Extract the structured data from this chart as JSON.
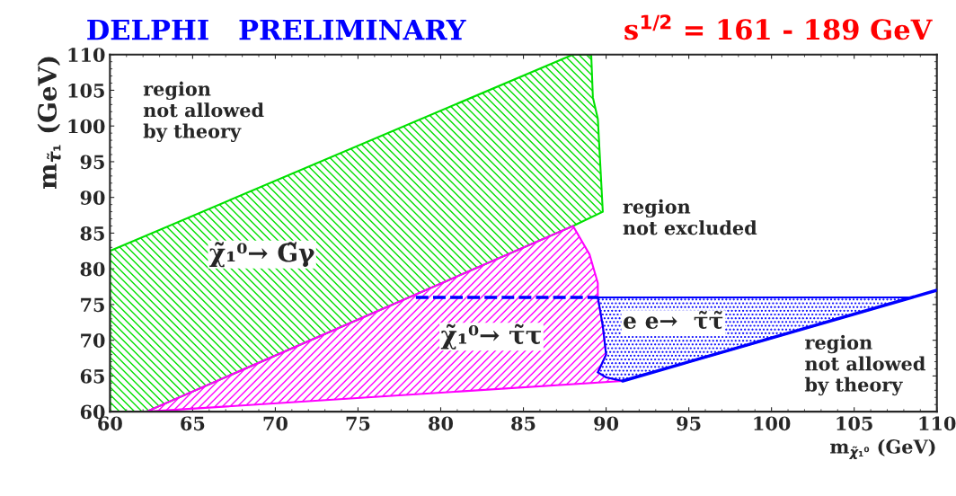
{
  "chart_data": {
    "type": "area",
    "title": "DELPHI   PRELIMINARY",
    "subtitle": "s$^{1/2}$ = 161 - 189 GeV",
    "xlabel": "m$_{χ̃₁⁰}$ (GeV)",
    "ylabel": "m$_{τ̃₁}$ (GeV)",
    "xlim": [
      60,
      110
    ],
    "ylim": [
      60,
      110
    ],
    "xticks": [
      60,
      65,
      70,
      75,
      80,
      85,
      90,
      95,
      100,
      105,
      110
    ],
    "yticks": [
      60,
      65,
      70,
      75,
      80,
      85,
      90,
      95,
      100,
      105,
      110
    ],
    "series": [
      {
        "color": "#00e000",
        "x": [
          60,
          88,
          89.1,
          89.2,
          89.5,
          89.8,
          88,
          62.2,
          60
        ],
        "values": [
          82.5,
          110,
          110,
          104,
          101,
          88,
          86,
          60,
          60
        ]
      },
      {
        "color": "#ff00ff",
        "x": [
          62.2,
          88,
          89,
          89.5,
          89.5,
          89.8,
          90,
          89.5,
          90,
          91,
          62.2
        ],
        "values": [
          60,
          86,
          82,
          78,
          76,
          72,
          68,
          65.5,
          64.8,
          64.3,
          60
        ]
      },
      {
        "color": "#0000ff",
        "x": [
          89.5,
          108.5,
          91,
          90,
          89.5,
          90,
          89.8,
          89.5
        ],
        "values": [
          76,
          76,
          64.3,
          64.8,
          65.5,
          68,
          72,
          76
        ]
      },
      {
        "type": "line",
        "color": "#0000ff",
        "line_style": "solid",
        "x": [
          91,
          110
        ],
        "values": [
          64.3,
          77
        ]
      },
      {
        "type": "line",
        "color": "#0000ff",
        "line_style": "dashed",
        "x": [
          78.5,
          84,
          89.5
        ],
        "values": [
          76,
          76,
          76
        ]
      }
    ],
    "annotations": [
      "region\nnot allowed\nby theory",
      "region\nnot excluded",
      "region\nnot allowed\nby theory",
      "χ̃₁⁰→ G̃γ",
      "χ̃₁⁰→ τ̃τ",
      "e e→  τ̃τ̃"
    ]
  }
}
